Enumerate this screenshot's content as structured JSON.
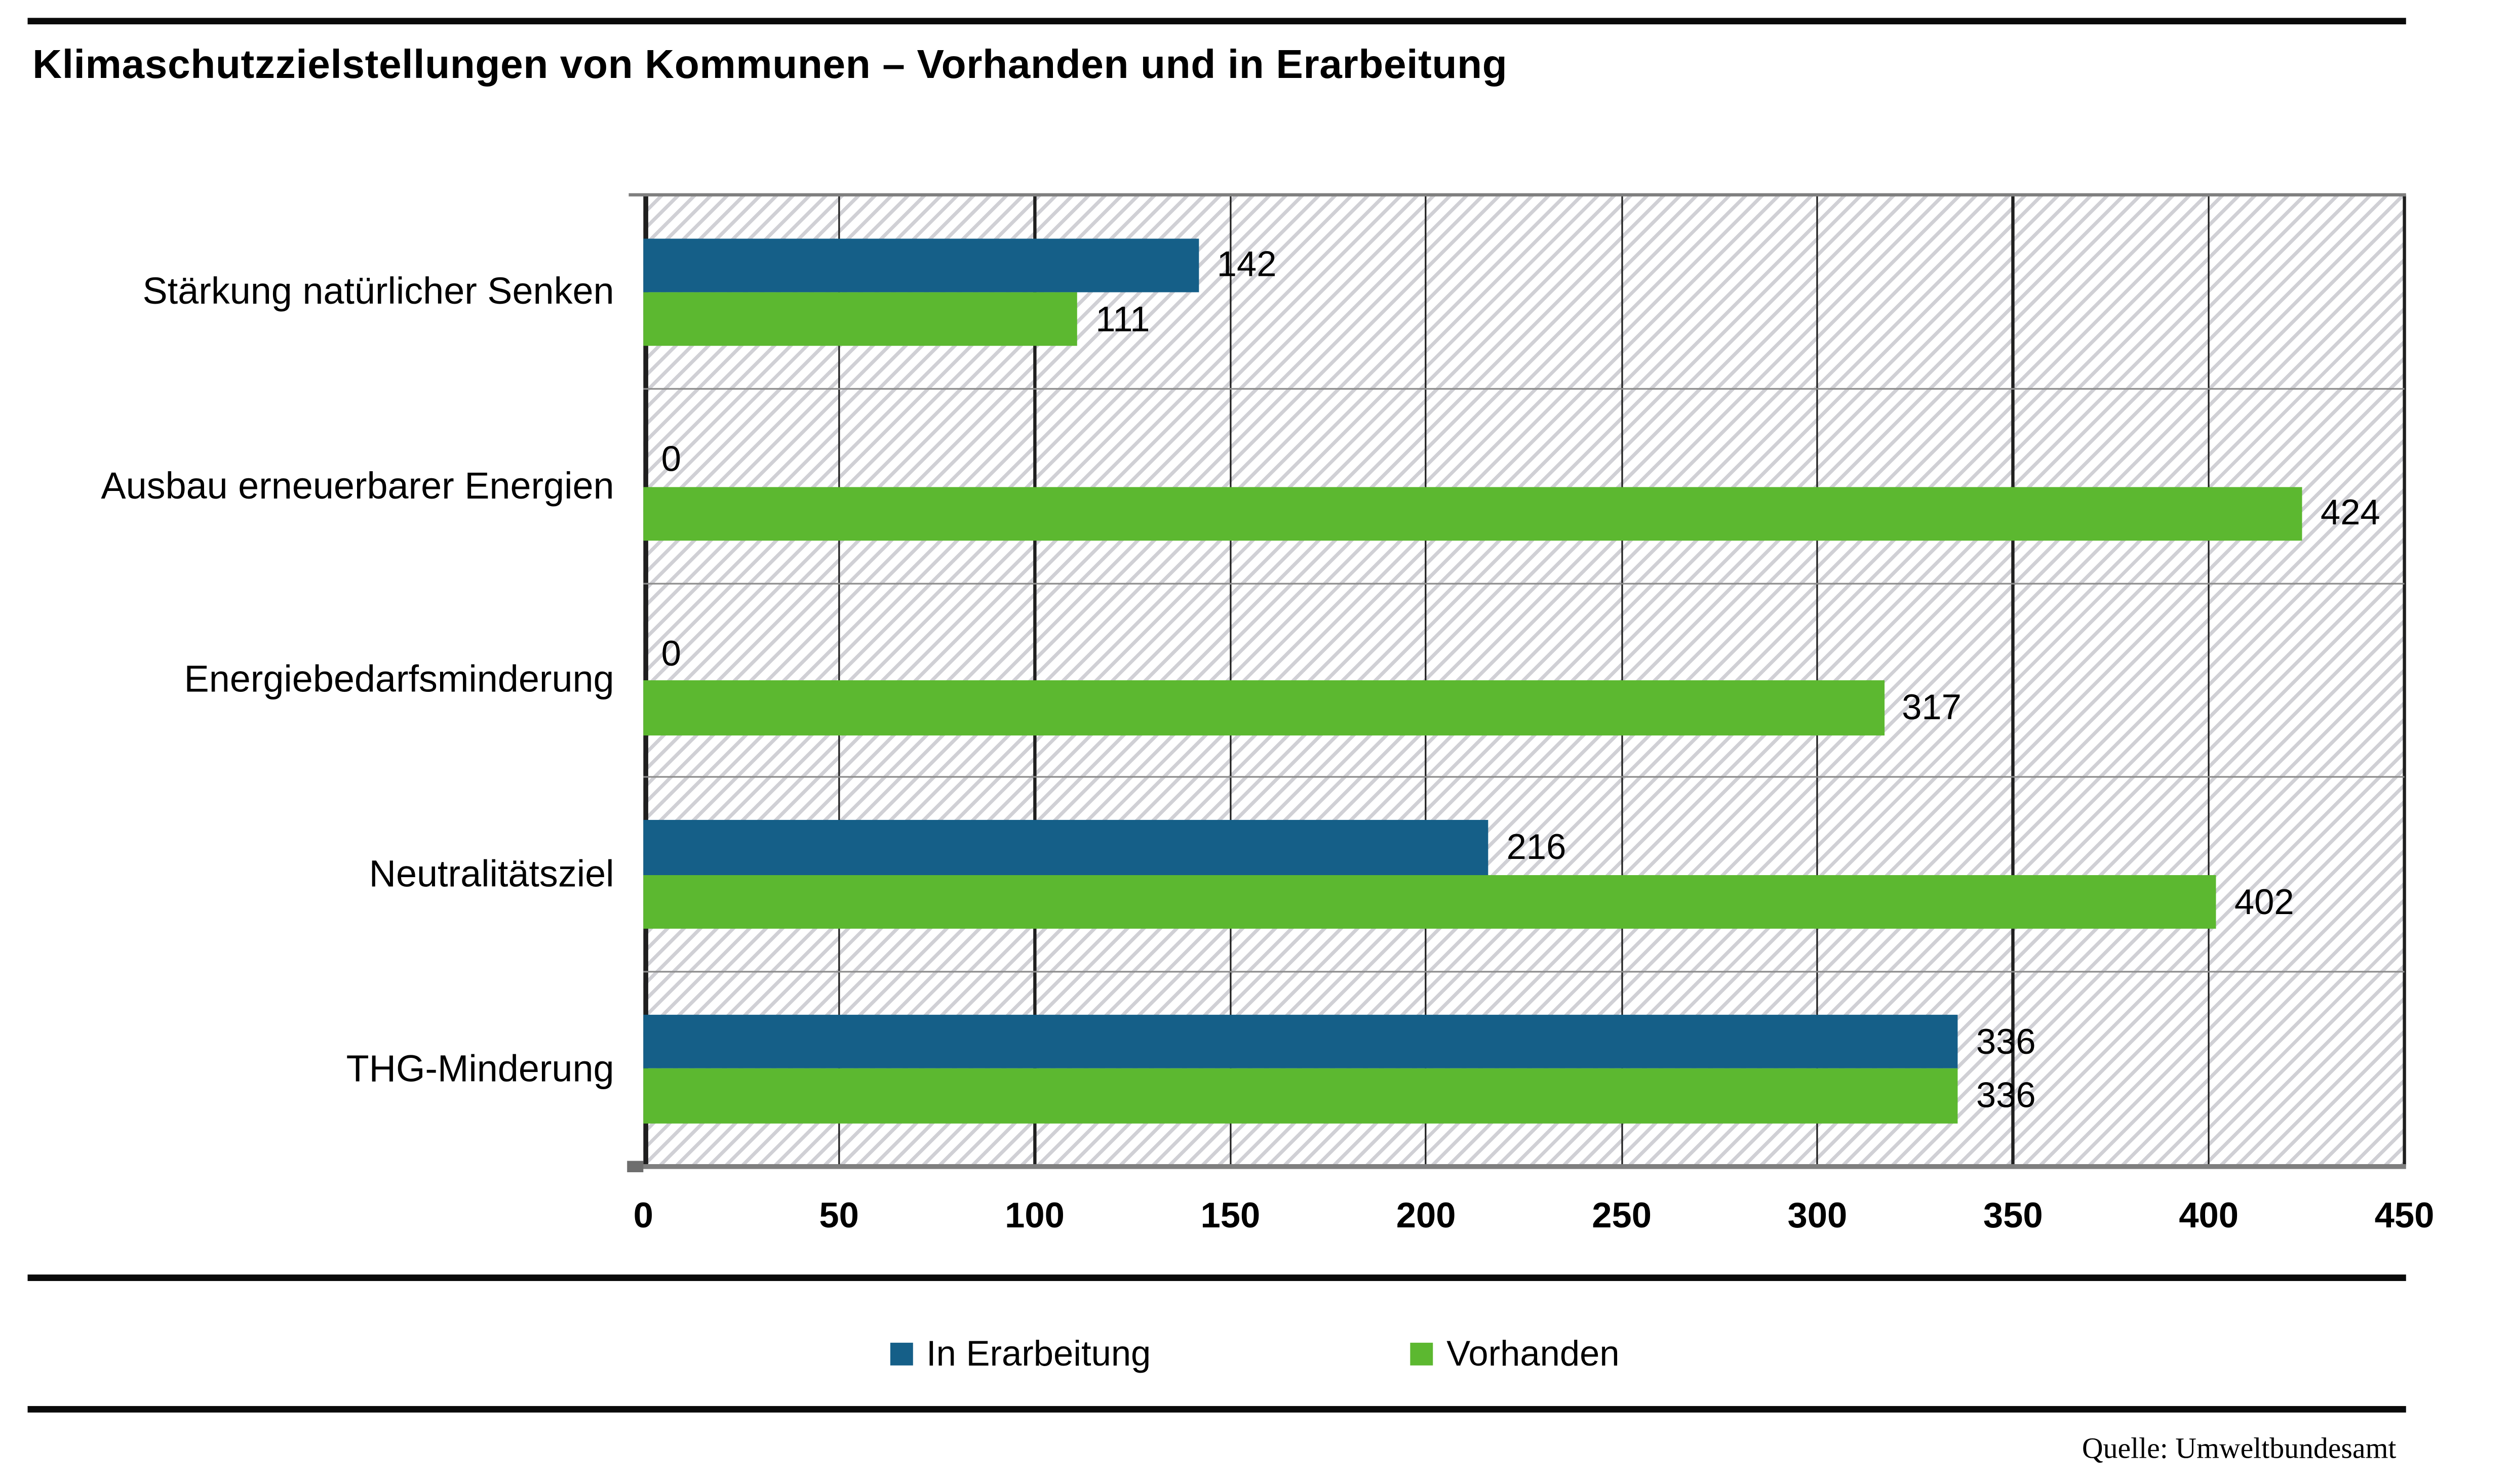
{
  "page": {
    "title": "Klimaschutzzielstellungen von Kommunen – Vorhanden und in Erarbeitung",
    "source": "Quelle: Umweltbundesamt"
  },
  "chart_data": {
    "type": "bar",
    "orientation": "horizontal",
    "title": "Klimaschutzzielstellungen von Kommunen – Vorhanden und in Erarbeitung",
    "categories": [
      "Stärkung natürlicher Senken",
      "Ausbau erneuerbarer Energien",
      "Energiebedarfsminderung",
      "Neutralitätsziel",
      "THG-Minderung"
    ],
    "series": [
      {
        "name": "In Erarbeitung",
        "color": "#155F88",
        "values": [
          142,
          0,
          0,
          216,
          336
        ]
      },
      {
        "name": "Vorhanden",
        "color": "#5CB830",
        "values": [
          111,
          424,
          317,
          402,
          336
        ]
      }
    ],
    "xlabel": "",
    "ylabel": "",
    "xlim": [
      0,
      450
    ],
    "xticks": [
      0,
      50,
      100,
      150,
      200,
      250,
      300,
      350,
      400,
      450
    ],
    "grid": true,
    "legend_position": "bottom",
    "plot_background": "diagonal-hatch",
    "source": "Quelle: Umweltbundesamt"
  },
  "legend": {
    "items": [
      {
        "label": "In Erarbeitung",
        "color": "#155F88"
      },
      {
        "label": "Vorhanden",
        "color": "#5CB830"
      }
    ]
  }
}
